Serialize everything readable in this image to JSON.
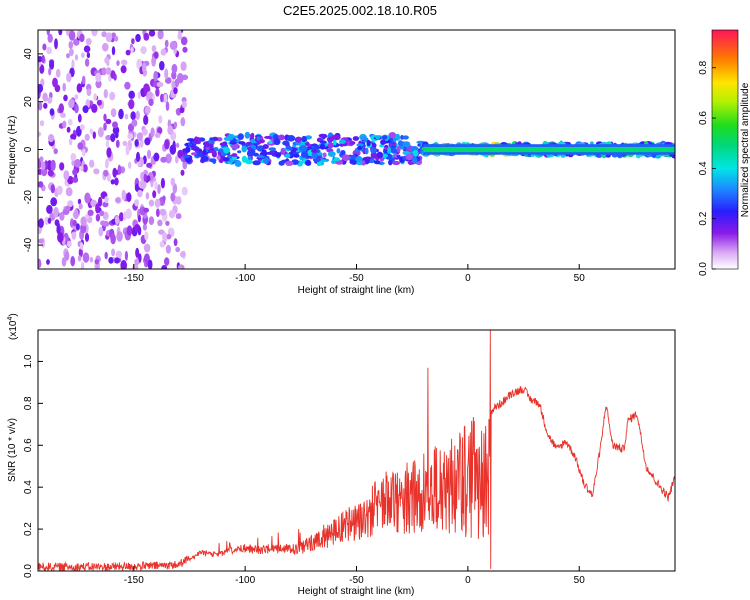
{
  "title": "C2E5.2025.002.18.10.R05",
  "chart_data": [
    {
      "type": "heatmap",
      "title": "C2E5.2025.002.18.10.R05",
      "xlabel": "Height of straight line (km)",
      "ylabel": "Frequency (Hz)",
      "xlim": [
        -193,
        93
      ],
      "ylim": [
        -50,
        50
      ],
      "x_ticks": [
        -150,
        -100,
        -50,
        0,
        50
      ],
      "y_ticks": [
        -40,
        -20,
        0,
        20,
        40
      ],
      "colorbar": {
        "label": "Normalized spectral amplitude",
        "range": [
          0,
          0.95
        ],
        "ticks": [
          0.0,
          0.2,
          0.4,
          0.6,
          0.8
        ]
      },
      "segments": [
        {
          "x0": -193,
          "x1": -127,
          "f_center": 0,
          "f_halfwidth": 50,
          "amplitude": 0.12,
          "description_level": "noise"
        },
        {
          "x0": -127,
          "x1": -110,
          "f_center": 0,
          "f_halfwidth": 5,
          "amplitude": 0.25
        },
        {
          "x0": -110,
          "x1": -20,
          "f_center": 0,
          "f_halfwidth": 6,
          "amplitude": 0.32
        },
        {
          "x0": -20,
          "x1": 20,
          "f_center": 0,
          "f_halfwidth": 2,
          "amplitude": 0.6
        },
        {
          "x0": 20,
          "x1": 93,
          "f_center": 0,
          "f_halfwidth": 2.5,
          "amplitude": 0.42
        }
      ]
    },
    {
      "type": "line",
      "xlabel": "Height of straight line (km)",
      "ylabel": "SNR (10 * v/v)",
      "y_multiplier": "(x10",
      "y_multiplier_exp": "4",
      "y_multiplier_close": ")",
      "xlim": [
        -193,
        93
      ],
      "ylim": [
        0,
        1.15
      ],
      "x_ticks": [
        -150,
        -100,
        -50,
        0,
        50
      ],
      "y_ticks": [
        0.0,
        0.2,
        0.4,
        0.6,
        0.8,
        1.0
      ],
      "color": "#e8322a",
      "x": [
        -193,
        -180,
        -160,
        -140,
        -130,
        -125,
        -120,
        -115,
        -110,
        -105,
        -100,
        -95,
        -90,
        -85,
        -80,
        -75,
        -70,
        -65,
        -60,
        -55,
        -50,
        -45,
        -40,
        -35,
        -30,
        -25,
        -20,
        -18,
        -15,
        -10,
        -5,
        0,
        5,
        8,
        10,
        12,
        15,
        20,
        25,
        28,
        32,
        36,
        40,
        44,
        48,
        52,
        56,
        60,
        62,
        65,
        70,
        72,
        76,
        80,
        85,
        90,
        93
      ],
      "envelope": [
        0.02,
        0.02,
        0.02,
        0.025,
        0.03,
        0.06,
        0.1,
        0.09,
        0.1,
        0.12,
        0.13,
        0.12,
        0.13,
        0.13,
        0.13,
        0.14,
        0.18,
        0.2,
        0.25,
        0.3,
        0.32,
        0.38,
        0.45,
        0.5,
        0.5,
        0.55,
        0.6,
        0.5,
        0.6,
        0.65,
        0.7,
        0.72,
        0.75,
        0.75,
        0.75,
        0.78,
        0.8,
        0.85,
        0.87,
        0.82,
        0.8,
        0.65,
        0.58,
        0.62,
        0.55,
        0.42,
        0.36,
        0.62,
        0.8,
        0.6,
        0.58,
        0.72,
        0.75,
        0.5,
        0.42,
        0.35,
        0.45
      ],
      "spikes": [
        {
          "x": -18,
          "y": 0.97
        },
        {
          "x": 10,
          "y": 1.15
        },
        {
          "x": 10.3,
          "y": 0.01
        }
      ]
    }
  ]
}
